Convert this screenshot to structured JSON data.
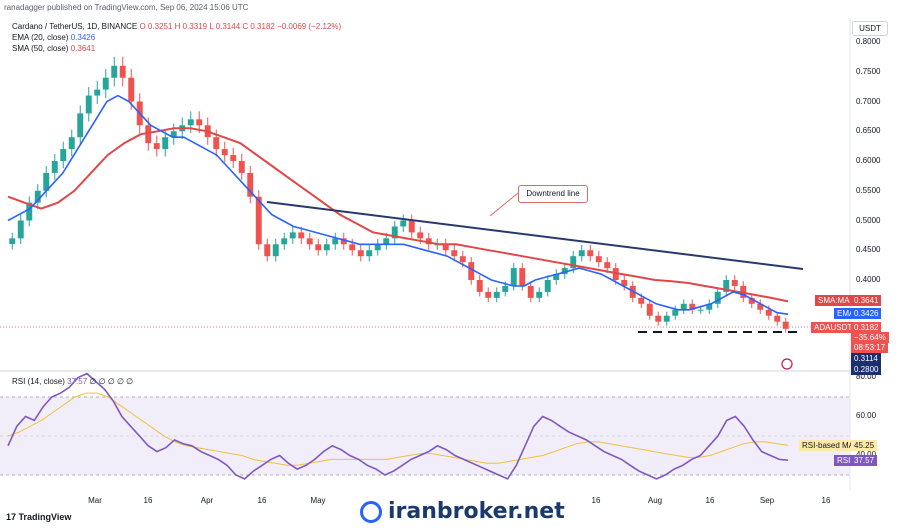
{
  "header": {
    "published_by": "ranadagger published on TradingView.com, Sep 06, 2024 15:06 UTC"
  },
  "legend": {
    "symbol": "Cardano / TetherUS, 1D, BINANCE",
    "ohlc": "O 0.3251  H 0.3319  L 0.3144  C 0.3182  −0.0069 (−2.12%)",
    "ema": "EMA (20, close)",
    "ema_value": "0.3426",
    "sma": "SMA (50, close)",
    "sma_value": "0.3641",
    "rsi": "RSI (14, close)",
    "rsi_value": "37.57",
    "rsi_extra": "∅ ∅ ∅ ∅ ∅"
  },
  "currency_button": "USDT",
  "annotation": "Downtrend line",
  "price_tags": {
    "sma_label": "SMA:MA",
    "sma_value": "0.3641",
    "ema_label": "EMA",
    "ema_value": "0.3426",
    "symbol_label": "ADAUSDT",
    "price": "0.3182",
    "change": "−35.64%",
    "countdown": "08:53:17",
    "support": "0.3114",
    "support_low": "0.2800"
  },
  "rsi_tags": {
    "ma_label": "RSI-based MA",
    "ma_value": "45.25",
    "rsi_label": "RSI",
    "rsi_value": "37.57"
  },
  "watermark": "iranbroker.net",
  "tv_logo": "TradingView",
  "colors": {
    "up": "#26a69a",
    "down": "#ef5350",
    "ema": "#2962ff",
    "sma": "#e04848",
    "trendline": "#283a6b",
    "rsi": "#7e57c2",
    "rsi_ma": "#f0c040"
  },
  "chart_data": {
    "type": "candlestick",
    "price_axis": {
      "ticks": [
        "0.8000",
        "0.7500",
        "0.7000",
        "0.6500",
        "0.6000",
        "0.5500",
        "0.5000",
        "0.4500",
        "0.4000"
      ]
    },
    "rsi_axis": {
      "ticks": [
        "80.00",
        "60.00",
        "40.00"
      ]
    },
    "x_ticks": [
      "Mar",
      "16",
      "Apr",
      "16",
      "May",
      "16",
      "Aug",
      "16",
      "Sep",
      "16"
    ],
    "close_series": [
      0.47,
      0.5,
      0.53,
      0.55,
      0.58,
      0.6,
      0.62,
      0.64,
      0.68,
      0.71,
      0.72,
      0.74,
      0.76,
      0.74,
      0.7,
      0.66,
      0.63,
      0.62,
      0.64,
      0.65,
      0.66,
      0.67,
      0.66,
      0.64,
      0.62,
      0.61,
      0.6,
      0.58,
      0.54,
      0.46,
      0.44,
      0.46,
      0.47,
      0.48,
      0.47,
      0.46,
      0.45,
      0.46,
      0.47,
      0.46,
      0.45,
      0.44,
      0.45,
      0.46,
      0.47,
      0.49,
      0.5,
      0.48,
      0.47,
      0.46,
      0.46,
      0.45,
      0.44,
      0.43,
      0.4,
      0.38,
      0.37,
      0.38,
      0.39,
      0.42,
      0.39,
      0.37,
      0.38,
      0.4,
      0.41,
      0.42,
      0.44,
      0.45,
      0.44,
      0.43,
      0.42,
      0.4,
      0.39,
      0.37,
      0.36,
      0.34,
      0.33,
      0.34,
      0.35,
      0.36,
      0.35,
      0.35,
      0.36,
      0.38,
      0.4,
      0.39,
      0.37,
      0.36,
      0.35,
      0.34,
      0.33,
      0.318
    ],
    "ema20_series": [
      0.5,
      0.51,
      0.52,
      0.54,
      0.56,
      0.58,
      0.61,
      0.64,
      0.67,
      0.7,
      0.71,
      0.7,
      0.68,
      0.66,
      0.65,
      0.64,
      0.64,
      0.63,
      0.62,
      0.61,
      0.59,
      0.57,
      0.55,
      0.53,
      0.51,
      0.5,
      0.49,
      0.485,
      0.48,
      0.475,
      0.47,
      0.465,
      0.46,
      0.46,
      0.46,
      0.46,
      0.46,
      0.455,
      0.45,
      0.445,
      0.44,
      0.43,
      0.42,
      0.41,
      0.4,
      0.395,
      0.39,
      0.39,
      0.4,
      0.405,
      0.41,
      0.415,
      0.42,
      0.415,
      0.41,
      0.4,
      0.39,
      0.38,
      0.37,
      0.36,
      0.355,
      0.35,
      0.35,
      0.355,
      0.36,
      0.37,
      0.38,
      0.375,
      0.365,
      0.355,
      0.345,
      0.3426
    ],
    "sma50_series": [
      0.54,
      0.53,
      0.52,
      0.53,
      0.55,
      0.58,
      0.61,
      0.63,
      0.645,
      0.65,
      0.655,
      0.655,
      0.65,
      0.64,
      0.63,
      0.61,
      0.59,
      0.57,
      0.55,
      0.53,
      0.51,
      0.495,
      0.48,
      0.475,
      0.47,
      0.465,
      0.46,
      0.46,
      0.455,
      0.45,
      0.445,
      0.44,
      0.435,
      0.43,
      0.425,
      0.42,
      0.415,
      0.41,
      0.405,
      0.4,
      0.398,
      0.395,
      0.39,
      0.385,
      0.38,
      0.375,
      0.37,
      0.3641
    ],
    "downtrend_line": [
      [
        0.527
      ],
      [
        0.415
      ]
    ],
    "support_level": 0.3114,
    "rsi_series": [
      45,
      55,
      60,
      58,
      65,
      70,
      72,
      75,
      80,
      82,
      78,
      74,
      68,
      60,
      55,
      50,
      45,
      42,
      44,
      48,
      46,
      45,
      42,
      40,
      38,
      35,
      30,
      28,
      32,
      35,
      38,
      40,
      36,
      33,
      35,
      38,
      42,
      45,
      43,
      40,
      38,
      35,
      33,
      30,
      32,
      35,
      38,
      40,
      42,
      45,
      43,
      40,
      38,
      36,
      34,
      32,
      30,
      28,
      35,
      45,
      55,
      60,
      58,
      55,
      52,
      50,
      48,
      45,
      42,
      40,
      38,
      35,
      32,
      30,
      28,
      30,
      33,
      35,
      38,
      40,
      45,
      50,
      58,
      60,
      55,
      48,
      42,
      40,
      38,
      37.57
    ],
    "rsi_ma_series": [
      50,
      52,
      55,
      58,
      62,
      66,
      70,
      72,
      72,
      70,
      66,
      62,
      58,
      54,
      50,
      47,
      45,
      44,
      43,
      42,
      41,
      40,
      38,
      37,
      36,
      35,
      35,
      36,
      37,
      38,
      38,
      38,
      38,
      38,
      38,
      39,
      40,
      41,
      41,
      40,
      39,
      38,
      37,
      36,
      36,
      37,
      38,
      39,
      40,
      42,
      44,
      46,
      47,
      47,
      46,
      45,
      44,
      43,
      42,
      41,
      40,
      39,
      39,
      40,
      42,
      44,
      46,
      47,
      47,
      46,
      45.25
    ]
  }
}
